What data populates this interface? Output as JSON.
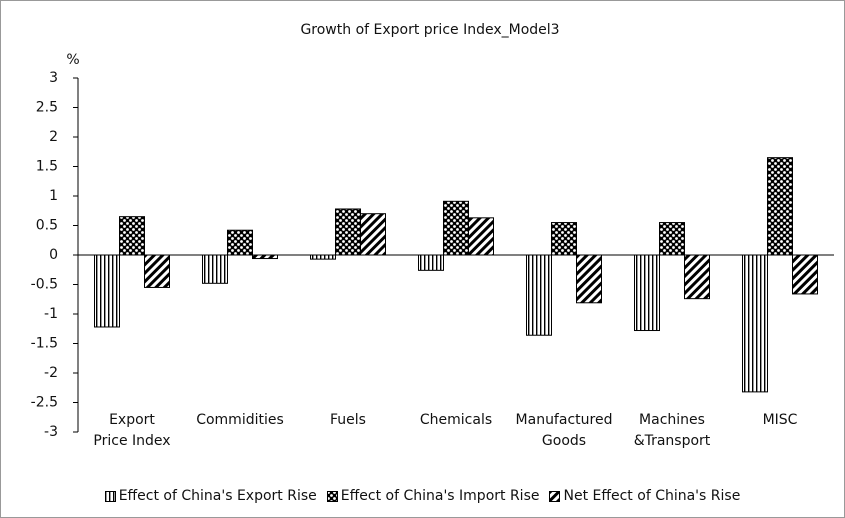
{
  "chart_data": {
    "type": "bar",
    "title": "Growth of Export price Index_Model3",
    "y_unit": "%",
    "categories": [
      "Export\nPrice Index",
      "Commidities",
      "Fuels",
      "Chemicals",
      "Manufactured\nGoods",
      "Machines\n&Transport",
      "MISC"
    ],
    "series": [
      {
        "name": "Effect of China's Export Rise",
        "pattern": "vstripe",
        "values": [
          -1.22,
          -0.48,
          -0.07,
          -0.26,
          -1.36,
          -1.28,
          -2.32
        ]
      },
      {
        "name": "Effect of China's Import Rise",
        "pattern": "dots",
        "values": [
          0.65,
          0.42,
          0.78,
          0.91,
          0.55,
          0.55,
          1.65
        ]
      },
      {
        "name": "Net Effect of China's Rise",
        "pattern": "diag",
        "values": [
          -0.55,
          -0.06,
          0.7,
          0.63,
          -0.81,
          -0.74,
          -0.66
        ]
      }
    ],
    "ylim": [
      -3,
      3
    ],
    "yticks": [
      -3,
      -2.5,
      -2,
      -1.5,
      -1,
      -0.5,
      0,
      0.5,
      1,
      1.5,
      2,
      2.5,
      3
    ],
    "grid": false
  }
}
